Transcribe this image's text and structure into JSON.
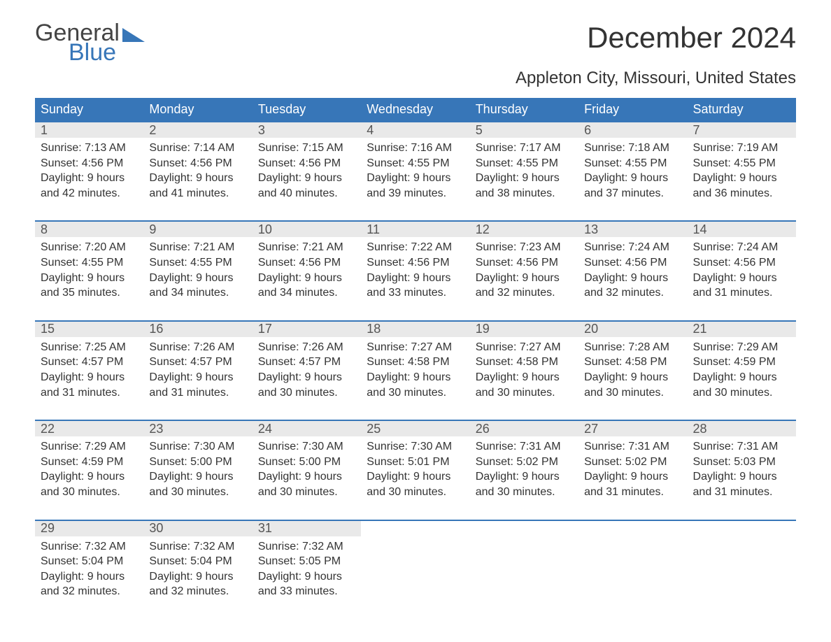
{
  "branding": {
    "logo_word1": "General",
    "logo_word2": "Blue",
    "logo_word1_color": "#444444",
    "logo_word2_color": "#3776b8",
    "flag_color": "#3776b8"
  },
  "header": {
    "month_title": "December 2024",
    "location": "Appleton City, Missouri, United States"
  },
  "style": {
    "header_bg": "#3776b8",
    "header_text": "#ffffff",
    "daynum_bg": "#e9e9e9",
    "daynum_text": "#555555",
    "body_text": "#333333",
    "row_sep_color": "#3776b8",
    "page_bg": "#ffffff",
    "th_fontsize": 18,
    "daynum_fontsize": 18,
    "cell_fontsize": 16,
    "title_fontsize": 42,
    "location_fontsize": 24
  },
  "calendar": {
    "day_headers": [
      "Sunday",
      "Monday",
      "Tuesday",
      "Wednesday",
      "Thursday",
      "Friday",
      "Saturday"
    ],
    "weeks": [
      [
        {
          "day": "1",
          "sunrise": "7:13 AM",
          "sunset": "4:56 PM",
          "daylight": "9 hours and 42 minutes."
        },
        {
          "day": "2",
          "sunrise": "7:14 AM",
          "sunset": "4:56 PM",
          "daylight": "9 hours and 41 minutes."
        },
        {
          "day": "3",
          "sunrise": "7:15 AM",
          "sunset": "4:56 PM",
          "daylight": "9 hours and 40 minutes."
        },
        {
          "day": "4",
          "sunrise": "7:16 AM",
          "sunset": "4:55 PM",
          "daylight": "9 hours and 39 minutes."
        },
        {
          "day": "5",
          "sunrise": "7:17 AM",
          "sunset": "4:55 PM",
          "daylight": "9 hours and 38 minutes."
        },
        {
          "day": "6",
          "sunrise": "7:18 AM",
          "sunset": "4:55 PM",
          "daylight": "9 hours and 37 minutes."
        },
        {
          "day": "7",
          "sunrise": "7:19 AM",
          "sunset": "4:55 PM",
          "daylight": "9 hours and 36 minutes."
        }
      ],
      [
        {
          "day": "8",
          "sunrise": "7:20 AM",
          "sunset": "4:55 PM",
          "daylight": "9 hours and 35 minutes."
        },
        {
          "day": "9",
          "sunrise": "7:21 AM",
          "sunset": "4:55 PM",
          "daylight": "9 hours and 34 minutes."
        },
        {
          "day": "10",
          "sunrise": "7:21 AM",
          "sunset": "4:56 PM",
          "daylight": "9 hours and 34 minutes."
        },
        {
          "day": "11",
          "sunrise": "7:22 AM",
          "sunset": "4:56 PM",
          "daylight": "9 hours and 33 minutes."
        },
        {
          "day": "12",
          "sunrise": "7:23 AM",
          "sunset": "4:56 PM",
          "daylight": "9 hours and 32 minutes."
        },
        {
          "day": "13",
          "sunrise": "7:24 AM",
          "sunset": "4:56 PM",
          "daylight": "9 hours and 32 minutes."
        },
        {
          "day": "14",
          "sunrise": "7:24 AM",
          "sunset": "4:56 PM",
          "daylight": "9 hours and 31 minutes."
        }
      ],
      [
        {
          "day": "15",
          "sunrise": "7:25 AM",
          "sunset": "4:57 PM",
          "daylight": "9 hours and 31 minutes."
        },
        {
          "day": "16",
          "sunrise": "7:26 AM",
          "sunset": "4:57 PM",
          "daylight": "9 hours and 31 minutes."
        },
        {
          "day": "17",
          "sunrise": "7:26 AM",
          "sunset": "4:57 PM",
          "daylight": "9 hours and 30 minutes."
        },
        {
          "day": "18",
          "sunrise": "7:27 AM",
          "sunset": "4:58 PM",
          "daylight": "9 hours and 30 minutes."
        },
        {
          "day": "19",
          "sunrise": "7:27 AM",
          "sunset": "4:58 PM",
          "daylight": "9 hours and 30 minutes."
        },
        {
          "day": "20",
          "sunrise": "7:28 AM",
          "sunset": "4:58 PM",
          "daylight": "9 hours and 30 minutes."
        },
        {
          "day": "21",
          "sunrise": "7:29 AM",
          "sunset": "4:59 PM",
          "daylight": "9 hours and 30 minutes."
        }
      ],
      [
        {
          "day": "22",
          "sunrise": "7:29 AM",
          "sunset": "4:59 PM",
          "daylight": "9 hours and 30 minutes."
        },
        {
          "day": "23",
          "sunrise": "7:30 AM",
          "sunset": "5:00 PM",
          "daylight": "9 hours and 30 minutes."
        },
        {
          "day": "24",
          "sunrise": "7:30 AM",
          "sunset": "5:00 PM",
          "daylight": "9 hours and 30 minutes."
        },
        {
          "day": "25",
          "sunrise": "7:30 AM",
          "sunset": "5:01 PM",
          "daylight": "9 hours and 30 minutes."
        },
        {
          "day": "26",
          "sunrise": "7:31 AM",
          "sunset": "5:02 PM",
          "daylight": "9 hours and 30 minutes."
        },
        {
          "day": "27",
          "sunrise": "7:31 AM",
          "sunset": "5:02 PM",
          "daylight": "9 hours and 31 minutes."
        },
        {
          "day": "28",
          "sunrise": "7:31 AM",
          "sunset": "5:03 PM",
          "daylight": "9 hours and 31 minutes."
        }
      ],
      [
        {
          "day": "29",
          "sunrise": "7:32 AM",
          "sunset": "5:04 PM",
          "daylight": "9 hours and 32 minutes."
        },
        {
          "day": "30",
          "sunrise": "7:32 AM",
          "sunset": "5:04 PM",
          "daylight": "9 hours and 32 minutes."
        },
        {
          "day": "31",
          "sunrise": "7:32 AM",
          "sunset": "5:05 PM",
          "daylight": "9 hours and 33 minutes."
        },
        null,
        null,
        null,
        null
      ]
    ],
    "labels": {
      "sunrise_prefix": "Sunrise: ",
      "sunset_prefix": "Sunset: ",
      "daylight_prefix": "Daylight: "
    }
  }
}
